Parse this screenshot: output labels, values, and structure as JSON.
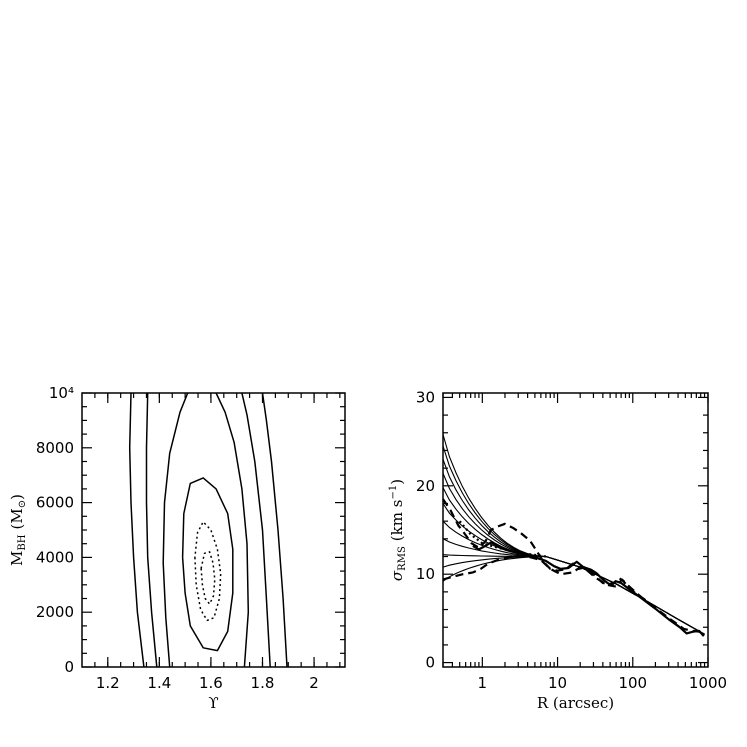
{
  "chart_data": [
    {
      "type": "contour",
      "xlabel": "ϒ",
      "ylabel": "M",
      "ylabel_sub": "BH",
      "ylabel_unit": "(M",
      "ylabel_unit_sub": "⊙",
      "ylabel_unit_close": ")",
      "xlim": [
        1.1,
        2.12
      ],
      "ylim": [
        0,
        10000
      ],
      "x_ticks": [
        {
          "v": 1.2,
          "label": "1.2"
        },
        {
          "v": 1.4,
          "label": "1.4"
        },
        {
          "v": 1.6,
          "label": "1.6"
        },
        {
          "v": 1.8,
          "label": "1.8"
        },
        {
          "v": 2.0,
          "label": "2"
        }
      ],
      "y_ticks": [
        {
          "v": 0,
          "label": "0"
        },
        {
          "v": 2000,
          "label": "2000"
        },
        {
          "v": 4000,
          "label": "4000"
        },
        {
          "v": 6000,
          "label": "6000"
        },
        {
          "v": 8000,
          "label": "8000"
        },
        {
          "v": 10000,
          "label": "10⁴"
        }
      ],
      "contours": [
        {
          "style": "dotted",
          "points": [
            [
              1.562,
              3600
            ],
            [
              1.567,
              3000
            ],
            [
              1.578,
              2500
            ],
            [
              1.595,
              2300
            ],
            [
              1.61,
              2600
            ],
            [
              1.615,
              3200
            ],
            [
              1.608,
              3800
            ],
            [
              1.595,
              4200
            ],
            [
              1.575,
              4150
            ],
            [
              1.562,
              3600
            ]
          ]
        },
        {
          "style": "dotted",
          "points": [
            [
              1.538,
              4000
            ],
            [
              1.543,
              3000
            ],
            [
              1.56,
              2100
            ],
            [
              1.585,
              1700
            ],
            [
              1.612,
              1800
            ],
            [
              1.633,
              2500
            ],
            [
              1.638,
              3400
            ],
            [
              1.625,
              4300
            ],
            [
              1.6,
              5000
            ],
            [
              1.57,
              5300
            ],
            [
              1.548,
              4900
            ],
            [
              1.538,
              4000
            ]
          ]
        },
        {
          "style": "solid",
          "points": [
            [
              1.49,
              4000
            ],
            [
              1.5,
              2700
            ],
            [
              1.52,
              1500
            ],
            [
              1.57,
              700
            ],
            [
              1.625,
              600
            ],
            [
              1.665,
              1300
            ],
            [
              1.685,
              2700
            ],
            [
              1.685,
              4300
            ],
            [
              1.665,
              5600
            ],
            [
              1.62,
              6500
            ],
            [
              1.57,
              6900
            ],
            [
              1.52,
              6700
            ],
            [
              1.495,
              5600
            ],
            [
              1.49,
              4000
            ]
          ]
        },
        {
          "style": "solid",
          "points": [
            [
              1.44,
              0
            ],
            [
              1.425,
              1800
            ],
            [
              1.415,
              3800
            ],
            [
              1.42,
              6000
            ],
            [
              1.44,
              7800
            ],
            [
              1.48,
              9300
            ],
            [
              1.51,
              10000
            ]
          ]
        },
        {
          "style": "solid",
          "points": [
            [
              1.73,
              0
            ],
            [
              1.745,
              2000
            ],
            [
              1.74,
              4500
            ],
            [
              1.72,
              6500
            ],
            [
              1.69,
              8200
            ],
            [
              1.655,
              9300
            ],
            [
              1.62,
              10000
            ]
          ]
        },
        {
          "style": "solid",
          "points": [
            [
              1.39,
              0
            ],
            [
              1.37,
              2000
            ],
            [
              1.355,
              4000
            ],
            [
              1.35,
              6000
            ],
            [
              1.35,
              8000
            ],
            [
              1.355,
              10000
            ]
          ]
        },
        {
          "style": "solid",
          "points": [
            [
              1.83,
              0
            ],
            [
              1.815,
              2500
            ],
            [
              1.8,
              5000
            ],
            [
              1.77,
              7500
            ],
            [
              1.74,
              9200
            ],
            [
              1.72,
              10000
            ]
          ]
        },
        {
          "style": "solid",
          "points": [
            [
              1.34,
              0
            ],
            [
              1.315,
              2000
            ],
            [
              1.3,
              4000
            ],
            [
              1.29,
              6000
            ],
            [
              1.285,
              8000
            ],
            [
              1.29,
              10000
            ]
          ]
        },
        {
          "style": "solid",
          "points": [
            [
              1.895,
              0
            ],
            [
              1.88,
              2500
            ],
            [
              1.86,
              5000
            ],
            [
              1.835,
              7500
            ],
            [
              1.815,
              9000
            ],
            [
              1.8,
              10000
            ]
          ]
        }
      ]
    },
    {
      "type": "line",
      "xscale": "log",
      "xlabel": "R (arcsec)",
      "ylabel": "σ",
      "ylabel_sub": "RMS",
      "ylabel_unit": "(km s",
      "ylabel_unit_sup": "−1",
      "ylabel_unit_close": ")",
      "xlim": [
        0.3,
        1000
      ],
      "ylim": [
        -0.5,
        30.5
      ],
      "x_ticks": [
        {
          "v": 1,
          "label": "1"
        },
        {
          "v": 10,
          "label": "10"
        },
        {
          "v": 100,
          "label": "100"
        },
        {
          "v": 1000,
          "label": "1000"
        }
      ],
      "y_ticks": [
        {
          "v": 0,
          "label": "0"
        },
        {
          "v": 10,
          "label": "10"
        },
        {
          "v": 20,
          "label": "20"
        },
        {
          "v": 30,
          "label": "30"
        }
      ],
      "models": [
        {
          "style": "solid",
          "start": 9.2
        },
        {
          "style": "solid",
          "start": 10.8
        },
        {
          "style": "solid",
          "start": 12.2
        },
        {
          "style": "solid",
          "start": 14.0
        },
        {
          "style": "solid",
          "start": 16.0
        },
        {
          "style": "solid",
          "start": 18.0
        },
        {
          "style": "solid",
          "start": 19.8
        },
        {
          "style": "solid",
          "start": 21.4
        },
        {
          "style": "solid",
          "start": 23.0
        },
        {
          "style": "solid",
          "start": 24.5
        },
        {
          "style": "solid",
          "start": 25.8
        }
      ],
      "model_join": {
        "x": 7,
        "y": 12.0
      },
      "model_tail": [
        [
          7,
          12.0
        ],
        [
          20,
          10.8
        ],
        [
          60,
          8.9
        ],
        [
          150,
          7.0
        ],
        [
          400,
          4.9
        ],
        [
          900,
          3.2
        ]
      ],
      "series": [
        {
          "style": "dotted",
          "points": [
            [
              0.5,
              16.0
            ],
            [
              0.7,
              14.5
            ],
            [
              1.0,
              13.5
            ],
            [
              1.6,
              13.0
            ],
            [
              2.5,
              12.6
            ],
            [
              4,
              12.3
            ],
            [
              7,
              12.0
            ]
          ]
        },
        {
          "style": "dashed",
          "points": [
            [
              0.3,
              18.5
            ],
            [
              0.38,
              17.2
            ],
            [
              0.48,
              15.5
            ],
            [
              0.58,
              14.6
            ],
            [
              0.72,
              13.5
            ],
            [
              0.9,
              13.0
            ],
            [
              1.1,
              13.7
            ],
            [
              1.3,
              15.0
            ],
            [
              1.6,
              15.4
            ],
            [
              2.0,
              15.7
            ],
            [
              2.6,
              15.2
            ],
            [
              3.3,
              14.6
            ],
            [
              4.3,
              13.8
            ],
            [
              5.3,
              12.6
            ],
            [
              6.5,
              11.4
            ],
            [
              8,
              10.6
            ],
            [
              10,
              10.4
            ],
            [
              13,
              10.6
            ],
            [
              16,
              11.2
            ],
            [
              19,
              10.6
            ],
            [
              24,
              10.8
            ],
            [
              30,
              10.0
            ],
            [
              40,
              9.0
            ],
            [
              55,
              8.9
            ],
            [
              65,
              9.6
            ],
            [
              75,
              9.2
            ],
            [
              95,
              8.2
            ],
            [
              140,
              7.2
            ],
            [
              220,
              5.9
            ],
            [
              330,
              4.8
            ],
            [
              480,
              3.8
            ],
            [
              620,
              3.6
            ],
            [
              760,
              3.5
            ],
            [
              880,
              3.3
            ]
          ]
        },
        {
          "style": "solid",
          "points": [
            [
              0.75,
              13.2
            ],
            [
              0.9,
              12.8
            ],
            [
              1.1,
              13.2
            ],
            [
              1.3,
              13.6
            ],
            [
              1.7,
              13.1
            ],
            [
              2.2,
              12.7
            ],
            [
              3,
              12.4
            ],
            [
              4,
              12.2
            ],
            [
              5.5,
              11.8
            ],
            [
              7,
              11.5
            ],
            [
              9,
              10.9
            ],
            [
              11,
              10.6
            ],
            [
              14,
              10.7
            ],
            [
              18,
              11.4
            ],
            [
              22,
              10.8
            ],
            [
              28,
              10.5
            ],
            [
              33,
              10.1
            ],
            [
              40,
              9.4
            ],
            [
              50,
              8.8
            ],
            [
              60,
              9.2
            ],
            [
              70,
              9.0
            ],
            [
              90,
              8.3
            ],
            [
              130,
              7.3
            ],
            [
              200,
              6.1
            ],
            [
              300,
              4.9
            ],
            [
              420,
              4.0
            ],
            [
              520,
              3.3
            ],
            [
              640,
              3.5
            ],
            [
              760,
              3.6
            ],
            [
              880,
              3.0
            ]
          ]
        },
        {
          "style": "dashed",
          "points": [
            [
              0.3,
              9.4
            ],
            [
              0.4,
              9.7
            ],
            [
              0.55,
              10.0
            ],
            [
              0.75,
              10.2
            ],
            [
              0.95,
              10.6
            ],
            [
              1.2,
              11.2
            ],
            [
              1.7,
              11.7
            ],
            [
              2.5,
              12.0
            ],
            [
              4,
              12.0
            ],
            [
              6,
              11.6
            ],
            [
              8,
              10.6
            ],
            [
              11,
              10.0
            ],
            [
              16,
              10.2
            ],
            [
              20,
              10.8
            ],
            [
              25,
              10.4
            ],
            [
              32,
              9.6
            ],
            [
              45,
              8.8
            ],
            [
              60,
              8.6
            ],
            [
              72,
              9.4
            ],
            [
              90,
              8.6
            ],
            [
              130,
              7.4
            ]
          ]
        }
      ]
    }
  ]
}
